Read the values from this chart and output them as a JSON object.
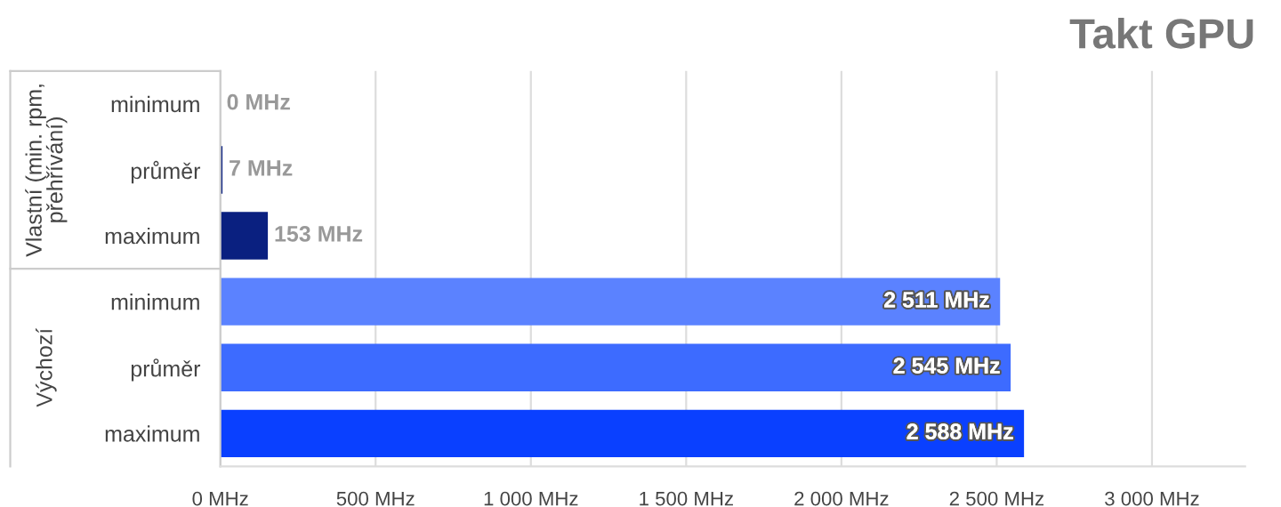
{
  "chart_data": {
    "type": "bar",
    "orientation": "horizontal",
    "title": "Takt GPU",
    "categories": [
      "minimum",
      "průměr",
      "maximum",
      "minimum",
      "průměr",
      "maximum"
    ],
    "values": [
      0,
      7,
      153,
      2511,
      2545,
      2588
    ],
    "colors": [
      "#0a2080",
      "#0a2080",
      "#0a2080",
      "#5b82ff",
      "#3d6bff",
      "#0a40ff"
    ],
    "value_labels": [
      "0 MHz",
      "7 MHz",
      "153 MHz",
      "2 511 MHz",
      "2 545 MHz",
      "2 588 MHz"
    ],
    "annotations": [
      "Vlastní (min. rpm, přehřívání)",
      "Výchozí"
    ],
    "xlim": [
      0,
      3300
    ],
    "xticks": [
      {
        "value": 0,
        "label": "0 MHz"
      },
      {
        "value": 500,
        "label": "500 MHz"
      },
      {
        "value": 1000,
        "label": "1 000 MHz"
      },
      {
        "value": 1500,
        "label": "1 500 MHz"
      },
      {
        "value": 2000,
        "label": "2 000 MHz"
      },
      {
        "value": 2500,
        "label": "2 500 MHz"
      },
      {
        "value": 3000,
        "label": "3 000 MHz"
      }
    ],
    "grid": "x"
  }
}
